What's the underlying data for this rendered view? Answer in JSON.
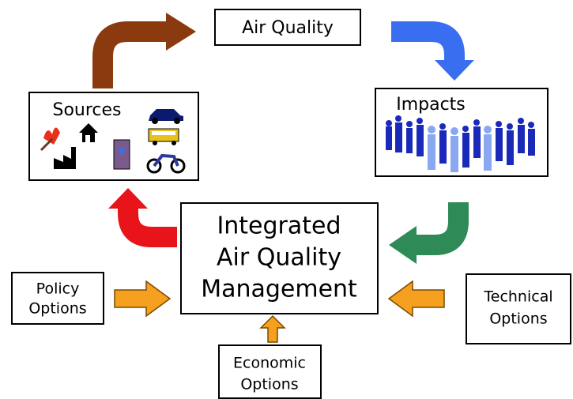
{
  "nodes": [
    {
      "lines": [
        "Air Quality"
      ]
    },
    {
      "lines": [
        "Sources"
      ]
    },
    {
      "lines": [
        "Impacts"
      ]
    },
    {
      "lines": [
        "Integrated",
        "Air Quality",
        "Management"
      ]
    },
    {
      "lines": [
        "Policy",
        "Options"
      ]
    },
    {
      "lines": [
        "Technical",
        "Options"
      ]
    },
    {
      "lines": [
        "Economic",
        "Options"
      ]
    }
  ]
}
